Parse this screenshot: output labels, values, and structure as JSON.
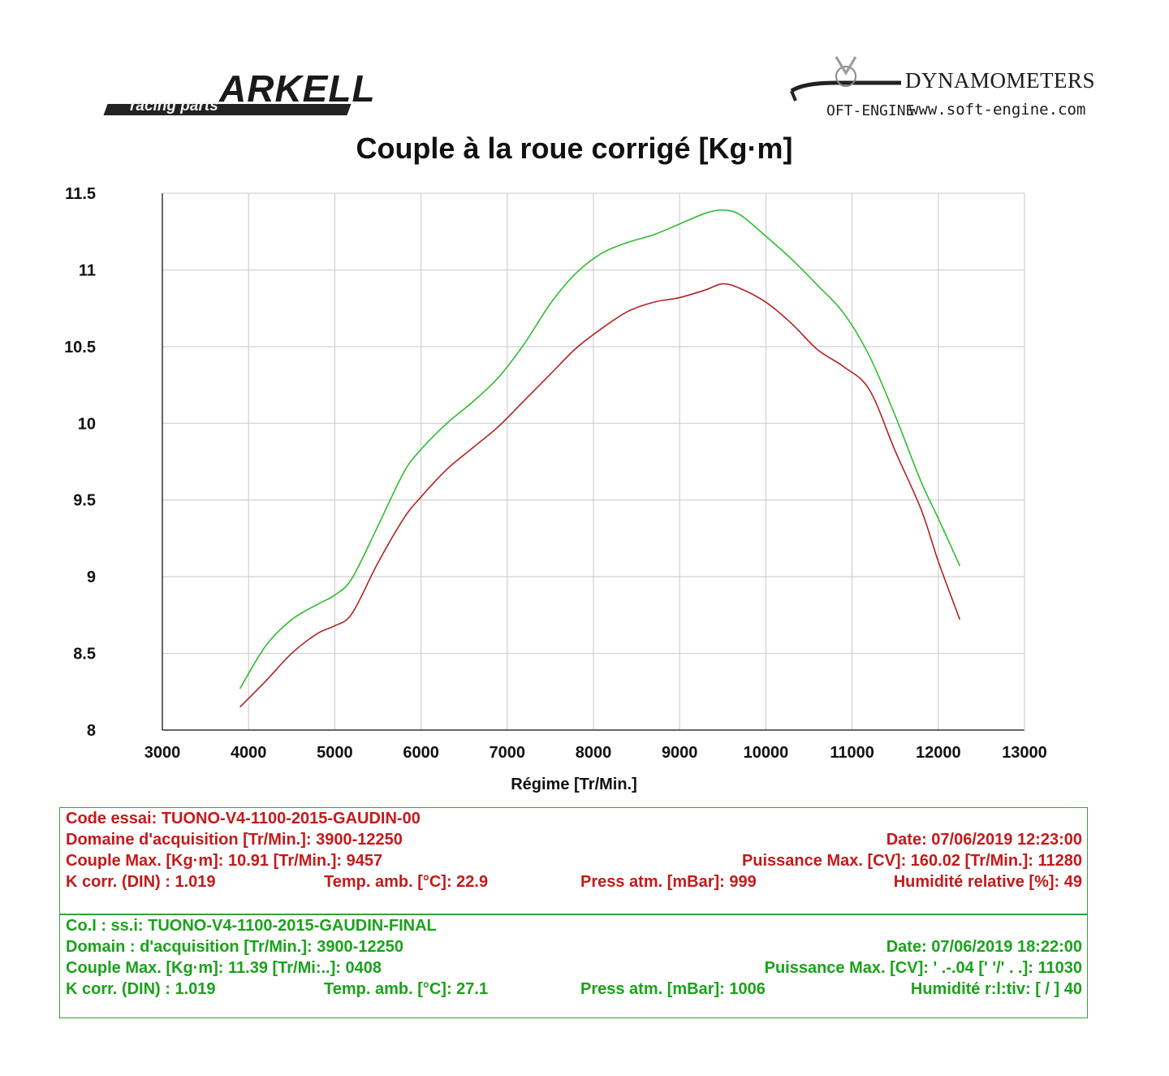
{
  "logo_left": {
    "text": "ARKELL",
    "tagline": "racing parts"
  },
  "logo_right": {
    "brand": "DYNAMOMETERS",
    "mark": "OFT-ENGINE",
    "url": "www.soft-engine.com"
  },
  "colors": {
    "series_red": "#b22222",
    "series_green": "#2ebd2e",
    "grid": "#c8c8c8"
  },
  "chart_data": {
    "type": "line",
    "title": "Couple à la roue corrigé [Kg·m]",
    "xlabel": "Régime [Tr/Min.]",
    "ylabel": "",
    "xlim": [
      3000,
      13000
    ],
    "ylim": [
      8,
      11.5
    ],
    "xticks": [
      "3000",
      "4000",
      "5000",
      "6000",
      "7000",
      "8000",
      "9000",
      "10000",
      "11000",
      "12000",
      "13000"
    ],
    "yticks": [
      "8",
      "8.5",
      "9",
      "9.5",
      "10",
      "10.5",
      "11",
      "11.5"
    ],
    "grid": true,
    "series": [
      {
        "name": "TUONO-V4-1100-2015-GAUDIN-00",
        "color": "#b22222",
        "x": [
          3900,
          4200,
          4500,
          4800,
          5000,
          5200,
          5500,
          5800,
          6000,
          6300,
          6600,
          6900,
          7200,
          7500,
          7800,
          8100,
          8400,
          8700,
          9000,
          9300,
          9500,
          9700,
          10000,
          10300,
          10600,
          10900,
          11200,
          11500,
          11800,
          12000,
          12250
        ],
        "y": [
          8.15,
          8.32,
          8.5,
          8.63,
          8.68,
          8.76,
          9.09,
          9.38,
          9.52,
          9.7,
          9.84,
          9.98,
          10.15,
          10.32,
          10.49,
          10.62,
          10.73,
          10.79,
          10.82,
          10.87,
          10.91,
          10.88,
          10.79,
          10.65,
          10.48,
          10.37,
          10.22,
          9.82,
          9.44,
          9.1,
          8.72
        ]
      },
      {
        "name": "TUONO-V4-1100-2015-GAUDIN-FINAL",
        "color": "#2ebd2e",
        "x": [
          3900,
          4200,
          4500,
          4800,
          5000,
          5200,
          5500,
          5800,
          6000,
          6300,
          6600,
          6900,
          7200,
          7500,
          7800,
          8100,
          8400,
          8700,
          9000,
          9300,
          9500,
          9700,
          10000,
          10300,
          10600,
          10900,
          11200,
          11500,
          11800,
          12000,
          12250
        ],
        "y": [
          8.27,
          8.55,
          8.72,
          8.82,
          8.88,
          8.99,
          9.33,
          9.68,
          9.83,
          10.0,
          10.14,
          10.3,
          10.52,
          10.78,
          10.98,
          11.11,
          11.18,
          11.23,
          11.3,
          11.37,
          11.39,
          11.36,
          11.22,
          11.07,
          10.9,
          10.72,
          10.44,
          10.05,
          9.62,
          9.38,
          9.07
        ]
      }
    ]
  },
  "info_red": {
    "code": "Code essai: TUONO-V4-1100-2015-GAUDIN-00",
    "domain": "Domaine d'acquisition [Tr/Min.]: 3900-12250",
    "date": "Date: 07/06/2019   12:23:00",
    "couple": "Couple Max. [Kg·m]: 10.91   [Tr/Min.]: 9457",
    "puissance": "Puissance Max. [CV]: 160.02   [Tr/Min.]: 11280",
    "kcorr": "K corr. (DIN) : 1.019",
    "temp": "Temp. amb. [°C]: 22.9",
    "press": "Press atm. [mBar]: 999",
    "hum": "Humidité relative [%]: 49"
  },
  "info_green": {
    "code": "Co.I : ss.i: TUONO-V4-1100-2015-GAUDIN-FINAL",
    "domain": "Domain : d'acquisition [Tr/Min.]: 3900-12250",
    "date": "Date: 07/06/2019   18:22:00",
    "couple": "Couple Max. [Kg·m]: 11.39   [Tr/Mi:..]: 0408",
    "puissance": "Puissance Max. [CV]: ' .-.04   [' '/'  . .]: 11030",
    "kcorr": "K corr. (DIN) : 1.019",
    "temp": "Temp. amb. [°C]: 27.1",
    "press": "Press atm. [mBar]: 1006",
    "hum": "Humidité r:l:tiv: [ / ]   40"
  }
}
